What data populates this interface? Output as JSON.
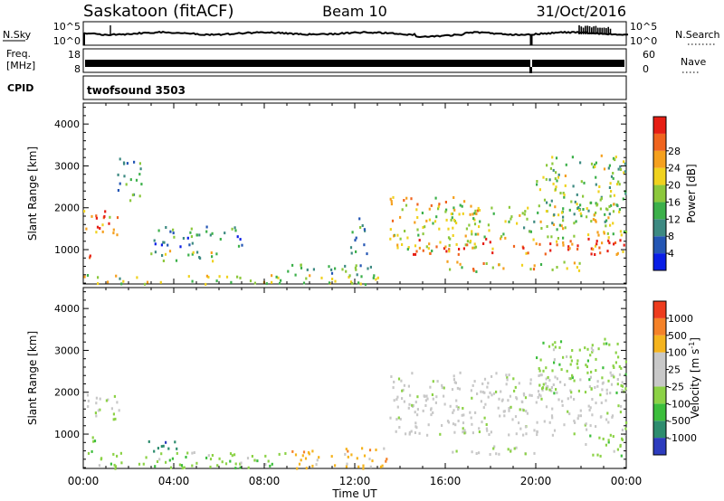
{
  "header": {
    "station": "Saskatoon (fitACF)",
    "beam": "Beam 10",
    "date": "31/Oct/2016"
  },
  "nsky_panel": {
    "left_label": "N.Sky",
    "left_ticks": [
      "10^5",
      "10^0"
    ],
    "right_label": "N.Search",
    "right_ticks": [
      "10^5",
      "10^0"
    ]
  },
  "freq_panel": {
    "left_label_1": "Freq.",
    "left_label_2": "[MHz]",
    "left_ticks": [
      "18",
      "8"
    ],
    "right_label": "Nave",
    "right_ticks": [
      "60",
      "0"
    ]
  },
  "cpid_panel": {
    "label": "CPID",
    "value": "twofsound 3503"
  },
  "chart_data": [
    {
      "type": "heatmap",
      "title": "Power",
      "ylabel": "Slant Range [km]",
      "xlabel": "Time UT",
      "x_ticks": [
        "00:00",
        "04:00",
        "08:00",
        "12:00",
        "16:00",
        "20:00",
        "00:00"
      ],
      "x_range_hours": [
        0,
        24
      ],
      "y_ticks": [
        1000,
        2000,
        3000,
        4000
      ],
      "ylim": [
        180,
        4500
      ],
      "colorbar": {
        "label": "Power [dB]",
        "ticks": [
          "4",
          "8",
          "12",
          "16",
          "20",
          "24",
          "28"
        ],
        "colors": [
          "#0a1ee6",
          "#2456b4",
          "#3d8a82",
          "#3cb04a",
          "#8cc83c",
          "#f0d21e",
          "#f5a01e",
          "#f0641e",
          "#e61e14"
        ]
      },
      "regions": [
        {
          "t0": 0.0,
          "t1": 1.6,
          "r0": 1350,
          "r1": 2000,
          "level": 0.75
        },
        {
          "t0": 0.1,
          "t1": 0.6,
          "r0": 750,
          "r1": 1000,
          "level": 0.9
        },
        {
          "t0": 1.5,
          "t1": 2.6,
          "r0": 2200,
          "r1": 3200,
          "level": 0.35
        },
        {
          "t0": 2.8,
          "t1": 6.0,
          "r0": 700,
          "r1": 1000,
          "level": 0.45
        },
        {
          "t0": 3.0,
          "t1": 7.0,
          "r0": 1100,
          "r1": 1600,
          "level": 0.25
        },
        {
          "t0": 0.0,
          "t1": 13.5,
          "r0": 200,
          "r1": 420,
          "level": 0.55
        },
        {
          "t0": 8.5,
          "t1": 12.8,
          "r0": 420,
          "r1": 700,
          "level": 0.35
        },
        {
          "t0": 11.7,
          "t1": 12.5,
          "r0": 900,
          "r1": 1800,
          "level": 0.3
        },
        {
          "t0": 13.5,
          "t1": 17.5,
          "r0": 1000,
          "r1": 2300,
          "level": 0.6
        },
        {
          "t0": 14.5,
          "t1": 24.0,
          "r0": 900,
          "r1": 1300,
          "level": 0.85
        },
        {
          "t0": 17.0,
          "t1": 24.0,
          "r0": 1300,
          "r1": 2100,
          "level": 0.5
        },
        {
          "t0": 16.0,
          "t1": 22.0,
          "r0": 500,
          "r1": 750,
          "level": 0.6
        },
        {
          "t0": 20.0,
          "t1": 24.0,
          "r0": 1900,
          "r1": 3300,
          "level": 0.45
        }
      ]
    },
    {
      "type": "heatmap",
      "title": "Velocity",
      "ylabel": "Slant Range [km]",
      "xlabel": "Time UT",
      "x_ticks": [
        "00:00",
        "04:00",
        "08:00",
        "12:00",
        "16:00",
        "20:00",
        "00:00"
      ],
      "x_range_hours": [
        0,
        24
      ],
      "y_ticks": [
        1000,
        2000,
        3000,
        4000
      ],
      "ylim": [
        180,
        4500
      ],
      "colorbar": {
        "label": "Velocity [m s-1]",
        "ticks": [
          "1000",
          "500",
          "100",
          "25",
          "-25",
          "-100",
          "-500",
          "-1000"
        ],
        "colors": [
          "#2d3cbe",
          "#2d8c6e",
          "#3cbe3c",
          "#8cd246",
          "#c8c8c8",
          "#c8c8c8",
          "#f5b41e",
          "#f58228",
          "#ee3c1e"
        ]
      },
      "regions": [
        {
          "t0": 0.0,
          "t1": 1.6,
          "r0": 1350,
          "r1": 2000,
          "vclass": 4
        },
        {
          "t0": 0.1,
          "t1": 0.6,
          "r0": 600,
          "r1": 1000,
          "vclass": 2
        },
        {
          "t0": 2.8,
          "t1": 4.5,
          "r0": 600,
          "r1": 900,
          "vclass": 1
        },
        {
          "t0": 0.0,
          "t1": 9.0,
          "r0": 200,
          "r1": 600,
          "vclass": 3
        },
        {
          "t0": 9.0,
          "t1": 13.5,
          "r0": 200,
          "r1": 700,
          "vclass": 6
        },
        {
          "t0": 13.5,
          "t1": 24.0,
          "r0": 1000,
          "r1": 2500,
          "vclass": 4
        },
        {
          "t0": 16.0,
          "t1": 20.0,
          "r0": 500,
          "r1": 750,
          "vclass": 4
        },
        {
          "t0": 20.0,
          "t1": 24.0,
          "r0": 2000,
          "r1": 3300,
          "vclass": 3
        },
        {
          "t0": 22.0,
          "t1": 24.0,
          "r0": 500,
          "r1": 1000,
          "vclass": 3
        }
      ]
    }
  ]
}
